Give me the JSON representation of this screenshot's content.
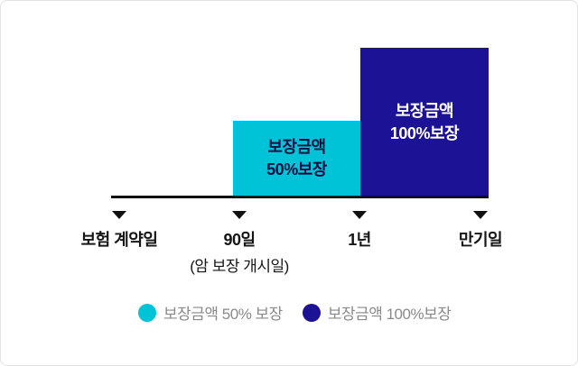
{
  "chart_data": {
    "type": "bar",
    "title": "",
    "unit": "%",
    "ylim": [
      0,
      100
    ],
    "grid": false,
    "axis_color": "#111111",
    "segments": [
      {
        "from": "보험 계약일",
        "to": "90일",
        "coverage_percent": 0,
        "label_lines": [],
        "color": null,
        "label_color": null
      },
      {
        "from": "90일",
        "to": "1년",
        "coverage_percent": 50,
        "label_lines": [
          "보장금액",
          "50%보장"
        ],
        "color": "#00c3d8",
        "label_color": "#0d1040"
      },
      {
        "from": "1년",
        "to": "만기일",
        "coverage_percent": 100,
        "label_lines": [
          "보장금액",
          "100%보장"
        ],
        "color": "#1c1295",
        "label_color": "#ffffff"
      }
    ],
    "axis_markers": [
      {
        "label": "보험 계약일",
        "note": ""
      },
      {
        "label": "90일",
        "note": "(암 보장 개시일)"
      },
      {
        "label": "1년",
        "note": ""
      },
      {
        "label": "만기일",
        "note": ""
      }
    ],
    "legend_position": "bottom",
    "legend": [
      {
        "label": "보장금액 50% 보장",
        "color": "#00c3d8"
      },
      {
        "label": "보장금액 100%보장",
        "color": "#1c1295"
      }
    ]
  }
}
